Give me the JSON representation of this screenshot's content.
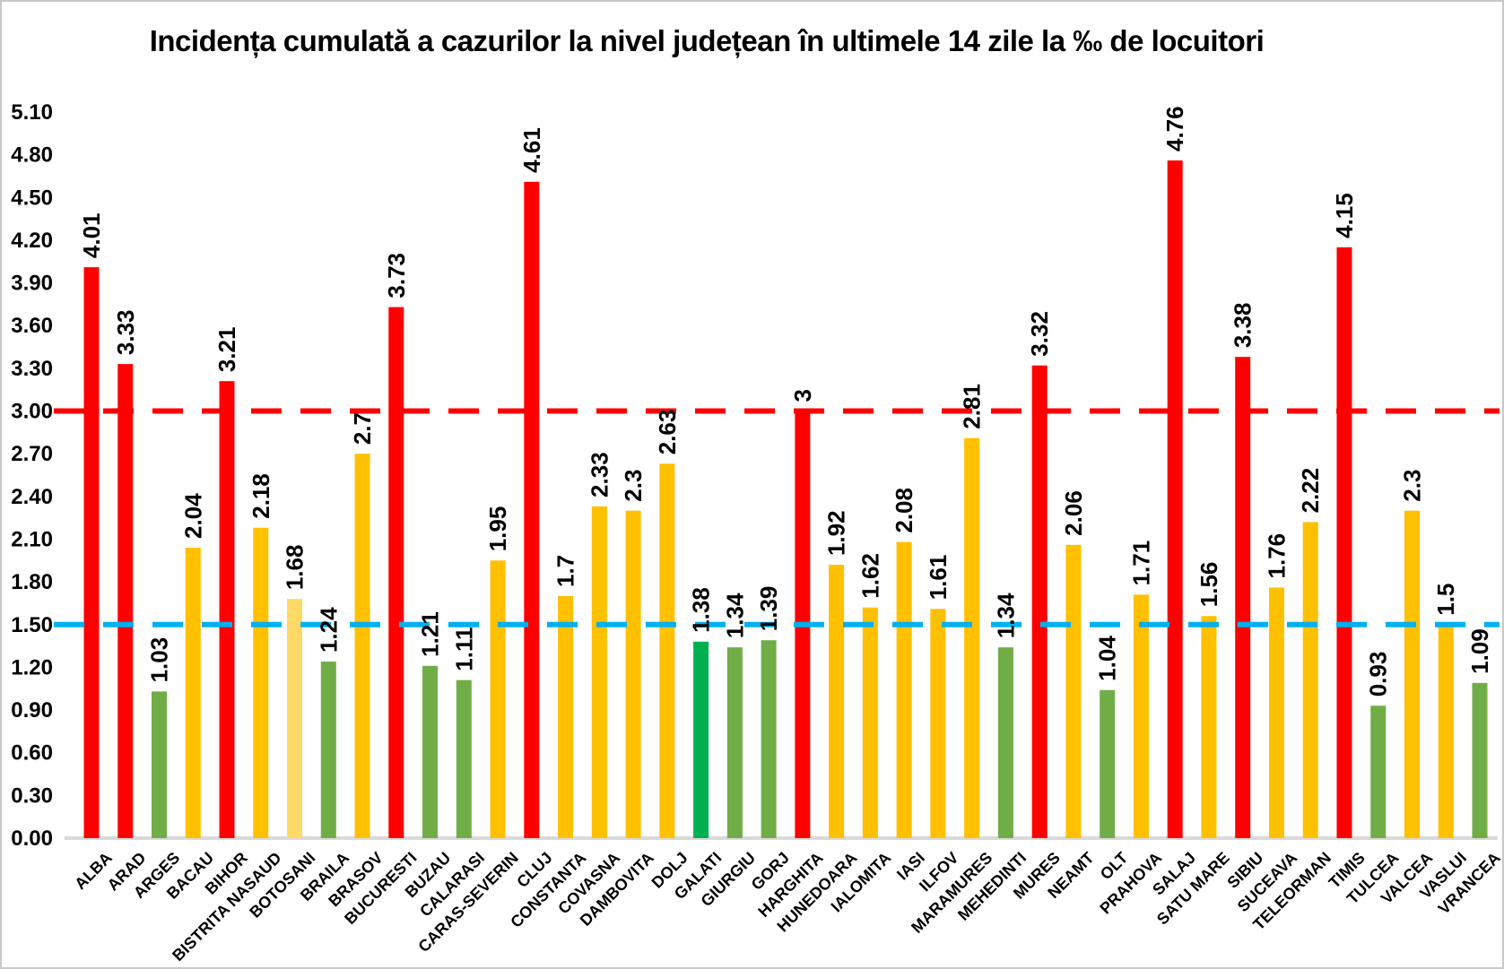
{
  "chart_data": {
    "type": "bar",
    "title": "Incidența cumulată a cazurilor la nivel județean în ultimele 14 zile la ‰ de locuitori",
    "xlabel": "",
    "ylabel": "",
    "ylim": [
      0,
      5.1
    ],
    "ytick_step": 0.3,
    "ytick_labels": [
      "0.00",
      "0.30",
      "0.60",
      "0.90",
      "1.20",
      "1.50",
      "1.80",
      "2.10",
      "2.40",
      "2.70",
      "3.00",
      "3.30",
      "3.60",
      "3.90",
      "4.20",
      "4.50",
      "4.80",
      "5.10"
    ],
    "grid": "off",
    "legend": "none",
    "categories": [
      "ALBA",
      "ARAD",
      "ARGES",
      "BACAU",
      "BIHOR",
      "BISTRITA NASAUD",
      "BOTOSANI",
      "BRAILA",
      "BRASOV",
      "BUCURESTI",
      "BUZAU",
      "CALARASI",
      "CARAS-SEVERIN",
      "CLUJ",
      "CONSTANTA",
      "COVASNA",
      "DAMBOVITA",
      "DOLJ",
      "GALATI",
      "GIURGIU",
      "GORJ",
      "HARGHITA",
      "HUNEDOARA",
      "IALOMITA",
      "IASI",
      "ILFOV",
      "MARAMURES",
      "MEHEDINTI",
      "MURES",
      "NEAMT",
      "OLT",
      "PRAHOVA",
      "SALAJ",
      "SATU MARE",
      "SIBIU",
      "SUCEAVA",
      "TELEORMAN",
      "TIMIS",
      "TULCEA",
      "VALCEA",
      "VASLUI",
      "VRANCEA"
    ],
    "values": [
      4.01,
      3.33,
      1.03,
      2.04,
      3.21,
      2.18,
      1.68,
      1.24,
      2.7,
      3.73,
      1.21,
      1.11,
      1.95,
      4.61,
      1.7,
      2.33,
      2.3,
      2.63,
      1.38,
      1.34,
      1.39,
      3,
      1.92,
      1.62,
      2.08,
      1.61,
      2.81,
      1.34,
      3.32,
      2.06,
      1.04,
      1.71,
      4.76,
      1.56,
      3.38,
      1.76,
      2.22,
      4.15,
      0.93,
      2.3,
      1.5,
      1.09
    ],
    "value_labels": [
      "4.01",
      "3.33",
      "1.03",
      "2.04",
      "3.21",
      "2.18",
      "1.68",
      "1.24",
      "2.7",
      "3.73",
      "1.21",
      "1.11",
      "1.95",
      "4.61",
      "1.7",
      "2.33",
      "2.3",
      "2.63",
      "1.38",
      "1.34",
      "1.39",
      "3",
      "1.92",
      "1.62",
      "2.08",
      "1.61",
      "2.81",
      "1.34",
      "3.32",
      "2.06",
      "1.04",
      "1.71",
      "4.76",
      "1.56",
      "3.38",
      "1.76",
      "2.22",
      "4.15",
      "0.93",
      "2.3",
      "1.5",
      "1.09"
    ],
    "bar_color_names": [
      "red",
      "red",
      "green",
      "gold",
      "red",
      "gold",
      "pale_yellow",
      "green",
      "gold",
      "red",
      "green",
      "green",
      "gold",
      "red",
      "gold",
      "gold",
      "gold",
      "gold",
      "bright_green",
      "green",
      "green",
      "red",
      "gold",
      "gold",
      "gold",
      "gold",
      "gold",
      "green",
      "red",
      "gold",
      "green",
      "gold",
      "red",
      "gold",
      "red",
      "gold",
      "gold",
      "red",
      "green",
      "gold",
      "gold",
      "green"
    ],
    "palette": {
      "red": "#FF0000",
      "gold": "#FFC000",
      "pale_yellow": "#FFD966",
      "green": "#70AD47",
      "bright_green": "#00B050"
    },
    "thresholds": [
      {
        "name": "red-threshold-line",
        "value": 3.0,
        "color": "#FF0000"
      },
      {
        "name": "blue-threshold-line",
        "value": 1.5,
        "color": "#00B0F0"
      }
    ],
    "axis_line_color": "#D9D9D9"
  }
}
